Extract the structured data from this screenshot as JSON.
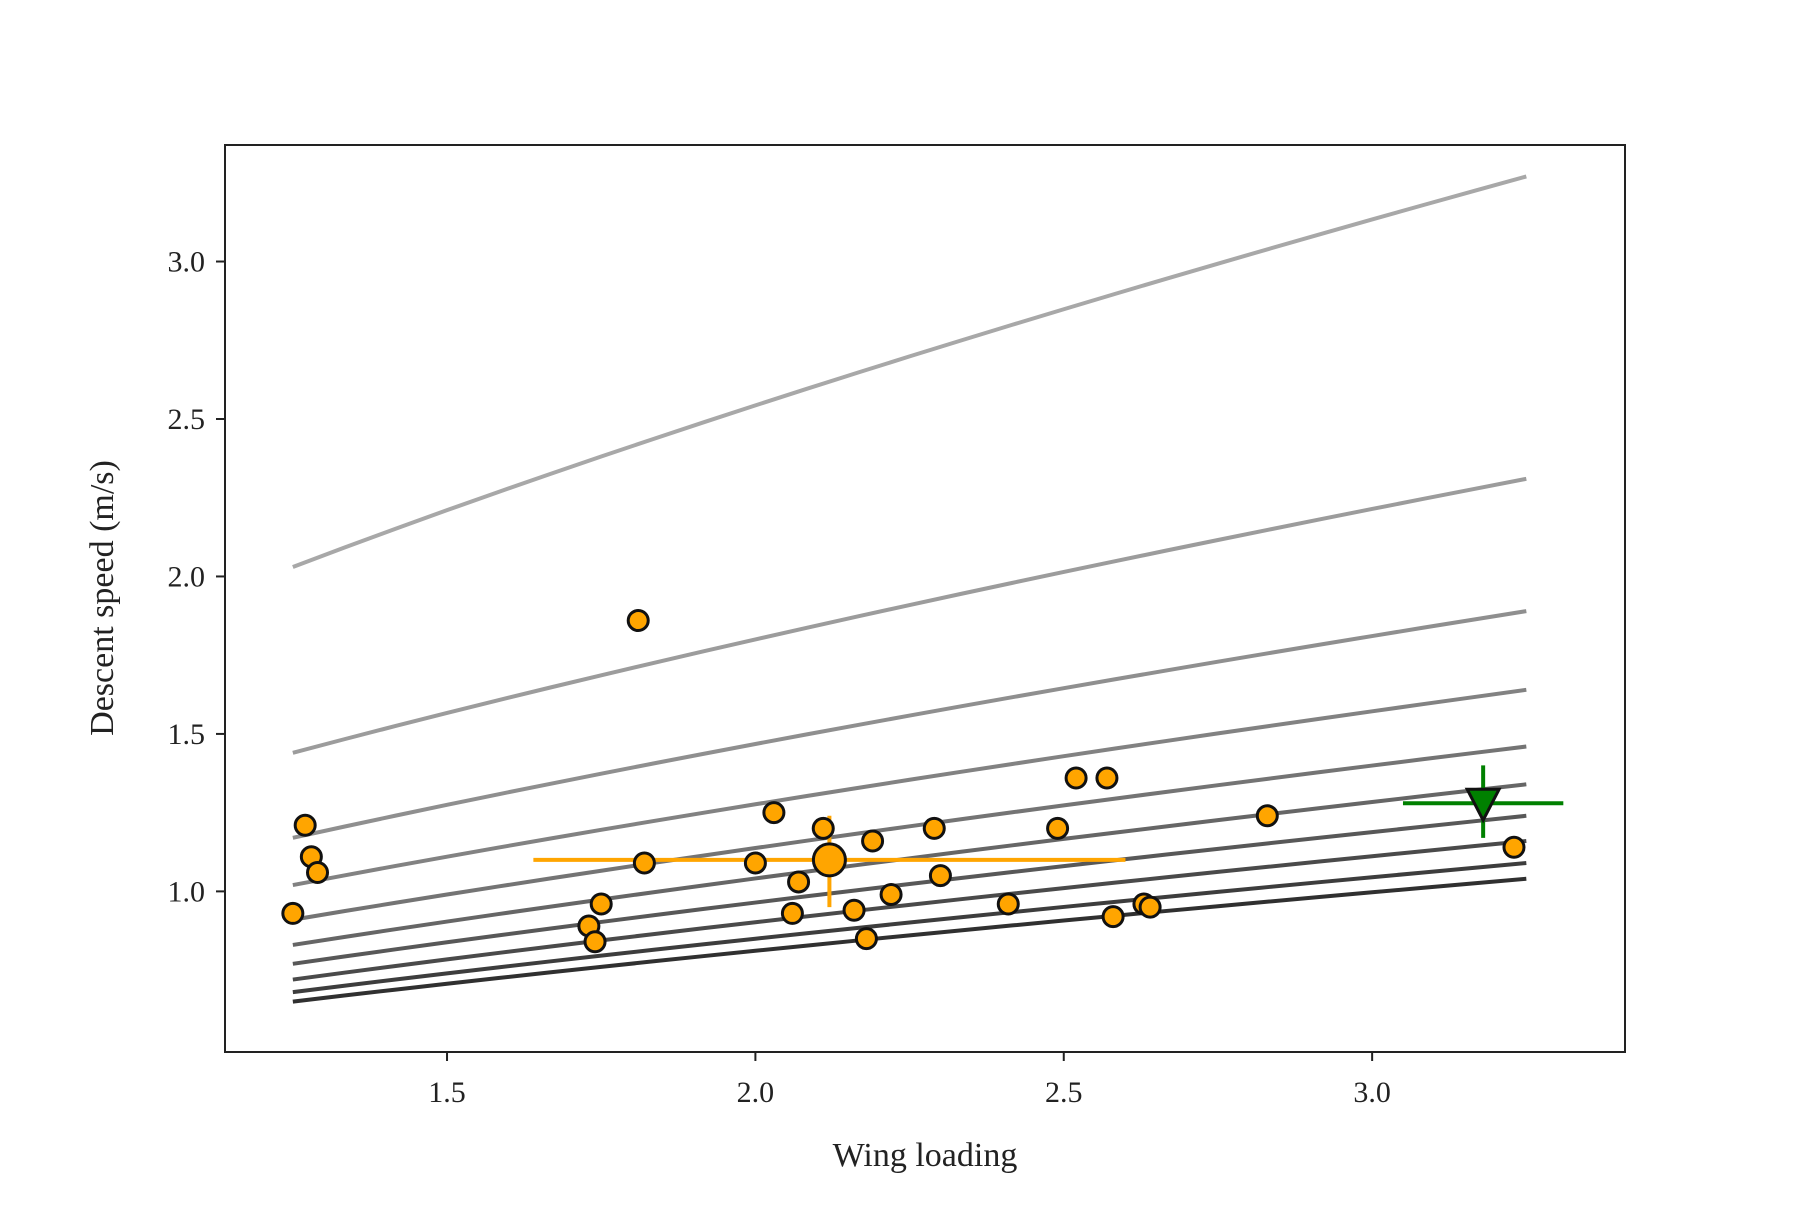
{
  "chart_data": {
    "type": "scatter",
    "title": "",
    "xlabel": "Wing loading",
    "ylabel": "Descent speed (m/s)",
    "xlim": [
      1.14,
      3.41
    ],
    "ylim": [
      0.49,
      3.37
    ],
    "xticks": [
      1.5,
      2.0,
      2.5,
      3.0
    ],
    "xtick_labels": [
      "1.5",
      "2.0",
      "2.5",
      "3.0"
    ],
    "yticks": [
      1.0,
      1.5,
      2.0,
      2.5,
      3.0
    ],
    "ytick_labels": [
      "1.0",
      "1.5",
      "2.0",
      "2.5",
      "3.0"
    ],
    "grid": false,
    "legend": false,
    "curves": [
      {
        "x": [
          1.25,
          3.25
        ],
        "y": [
          2.03,
          3.27
        ],
        "color": "#a8a8a8"
      },
      {
        "x": [
          1.25,
          3.25
        ],
        "y": [
          1.44,
          2.31
        ],
        "color": "#9c9c9c"
      },
      {
        "x": [
          1.25,
          3.25
        ],
        "y": [
          1.17,
          1.89
        ],
        "color": "#8f8f8f"
      },
      {
        "x": [
          1.25,
          3.25
        ],
        "y": [
          1.02,
          1.64
        ],
        "color": "#828282"
      },
      {
        "x": [
          1.25,
          3.25
        ],
        "y": [
          0.91,
          1.46
        ],
        "color": "#747474"
      },
      {
        "x": [
          1.25,
          3.25
        ],
        "y": [
          0.83,
          1.34
        ],
        "color": "#666666"
      },
      {
        "x": [
          1.25,
          3.25
        ],
        "y": [
          0.77,
          1.24
        ],
        "color": "#585858"
      },
      {
        "x": [
          1.25,
          3.25
        ],
        "y": [
          0.72,
          1.16
        ],
        "color": "#4a4a4a"
      },
      {
        "x": [
          1.25,
          3.25
        ],
        "y": [
          0.68,
          1.09
        ],
        "color": "#3d3d3d"
      },
      {
        "x": [
          1.25,
          3.25
        ],
        "y": [
          0.65,
          1.04
        ],
        "color": "#303030"
      }
    ],
    "points": {
      "color": "#ffa500",
      "edgecolor": "#111111",
      "x": [
        1.25,
        1.27,
        1.28,
        1.29,
        1.73,
        1.74,
        1.75,
        1.81,
        1.82,
        2.0,
        2.03,
        2.06,
        2.07,
        2.11,
        2.16,
        2.18,
        2.19,
        2.22,
        2.29,
        2.3,
        2.41,
        2.49,
        2.52,
        2.57,
        2.58,
        2.63,
        2.64,
        2.83,
        3.23
      ],
      "y": [
        0.93,
        1.21,
        1.11,
        1.06,
        0.89,
        0.84,
        0.96,
        1.86,
        1.09,
        1.09,
        1.25,
        0.93,
        1.03,
        1.2,
        0.94,
        0.85,
        1.16,
        0.99,
        1.2,
        1.05,
        0.96,
        1.2,
        1.36,
        1.36,
        0.92,
        0.96,
        0.95,
        1.24,
        1.14
      ]
    },
    "mean_point": {
      "color": "#ffa500",
      "x": 2.12,
      "y": 1.1,
      "xerr": [
        1.64,
        2.6
      ],
      "yerr": [
        0.95,
        1.24
      ]
    },
    "reference_point": {
      "color": "#008000",
      "marker": "triangle-down",
      "x": 3.18,
      "y": 1.28,
      "xerr": [
        3.05,
        3.31
      ],
      "yerr": [
        1.17,
        1.4
      ]
    }
  }
}
